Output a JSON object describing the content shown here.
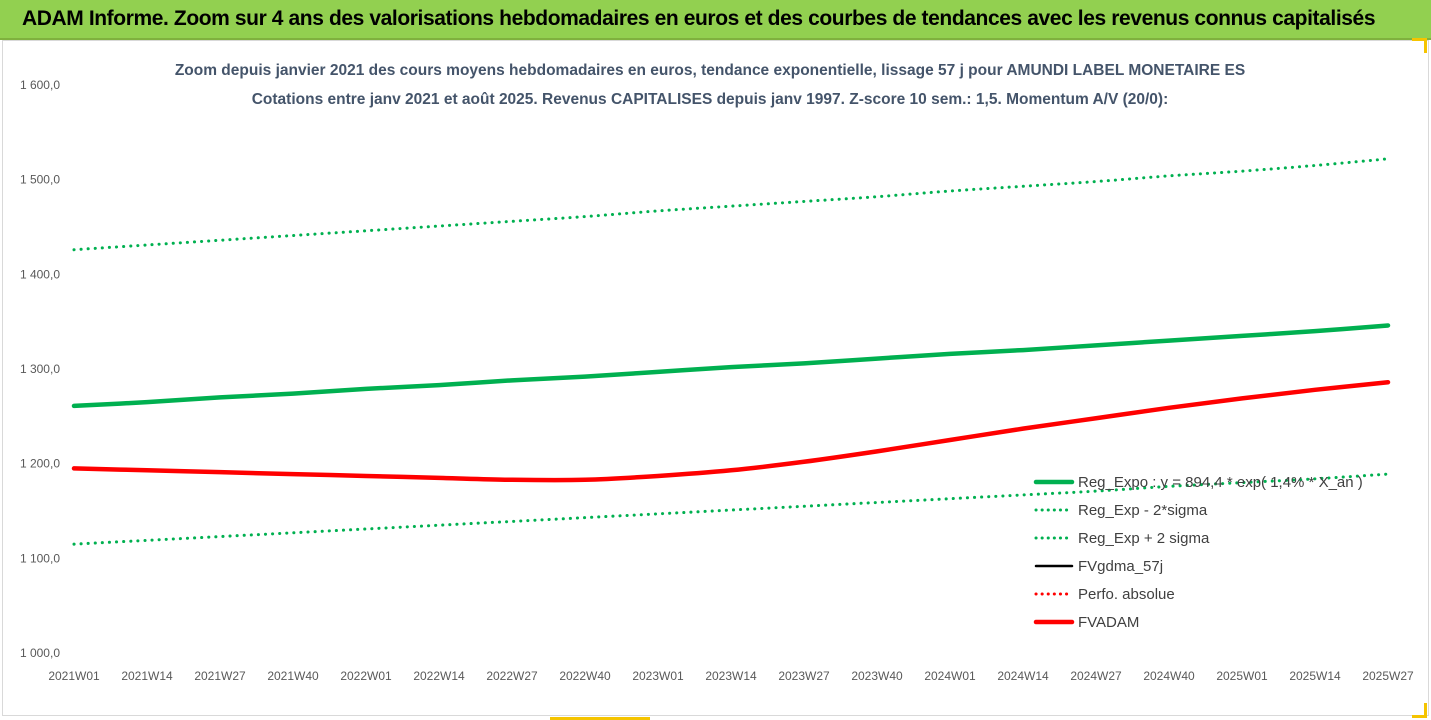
{
  "banner": {
    "title": "ADAM Informe. Zoom sur 4 ans des valorisations hebdomadaires en euros et des courbes de tendances avec les revenus connus capitalisés"
  },
  "colors": {
    "banner_bg": "#92d050",
    "green": "#00b050",
    "black": "#000000",
    "red": "#ff0000",
    "title_text": "#44546a"
  },
  "chart_data": {
    "type": "line",
    "title": "Zoom depuis janvier 2021 des cours moyens hebdomadaires en euros, tendance exponentielle, lissage 57 j pour AMUNDI LABEL MONETAIRE ES",
    "subtitle": "Cotations entre janv 2021 et août 2025. Revenus CAPITALISES depuis janv 1997. Z-score 10 sem.: 1,5. Momentum A/V (20/0):",
    "ylim": [
      1000,
      1600
    ],
    "yticks": [
      "1 000,0",
      "1 100,0",
      "1 200,0",
      "1 300,0",
      "1 400,0",
      "1 500,0",
      "1 600,0"
    ],
    "x_labels": [
      "2021W01",
      "2021W14",
      "2021W27",
      "2021W40",
      "2022W01",
      "2022W14",
      "2022W27",
      "2022W40",
      "2023W01",
      "2023W14",
      "2023W27",
      "2023W40",
      "2024W01",
      "2024W14",
      "2024W27",
      "2024W40",
      "2025W01",
      "2025W14",
      "2025W27"
    ],
    "grid": false,
    "legend_position": "right",
    "series": [
      {
        "name": "Reg_Expo : y = 894,4 * exp( 1,4% * X_an )",
        "color": "#00b050",
        "style": "solid-thick",
        "values": [
          1261,
          1265,
          1270,
          1274,
          1279,
          1283,
          1288,
          1292,
          1297,
          1302,
          1306,
          1311,
          1316,
          1320,
          1325,
          1330,
          1335,
          1340,
          1346
        ]
      },
      {
        "name": "Reg_Exp - 2*sigma",
        "color": "#00b050",
        "style": "dotted",
        "values": [
          1115,
          1119,
          1123,
          1127,
          1131,
          1135,
          1139,
          1143,
          1147,
          1151,
          1155,
          1159,
          1163,
          1167,
          1171,
          1176,
          1180,
          1184,
          1189
        ]
      },
      {
        "name": "Reg_Exp + 2 sigma",
        "color": "#00b050",
        "style": "dotted",
        "values": [
          1426,
          1431,
          1436,
          1441,
          1446,
          1451,
          1456,
          1461,
          1467,
          1472,
          1477,
          1482,
          1488,
          1493,
          1498,
          1504,
          1509,
          1515,
          1522
        ]
      },
      {
        "name": "FVgdma_57j",
        "color": "#000000",
        "style": "solid",
        "values": []
      },
      {
        "name": "Perfo. absolue",
        "color": "#ff0000",
        "style": "dotted",
        "values": []
      },
      {
        "name": "FVADAM",
        "color": "#ff0000",
        "style": "solid-thick",
        "values": [
          1195,
          1193,
          1191,
          1189,
          1187,
          1185,
          1183,
          1183,
          1187,
          1193,
          1202,
          1213,
          1225,
          1237,
          1248,
          1259,
          1269,
          1278,
          1286
        ]
      }
    ]
  }
}
